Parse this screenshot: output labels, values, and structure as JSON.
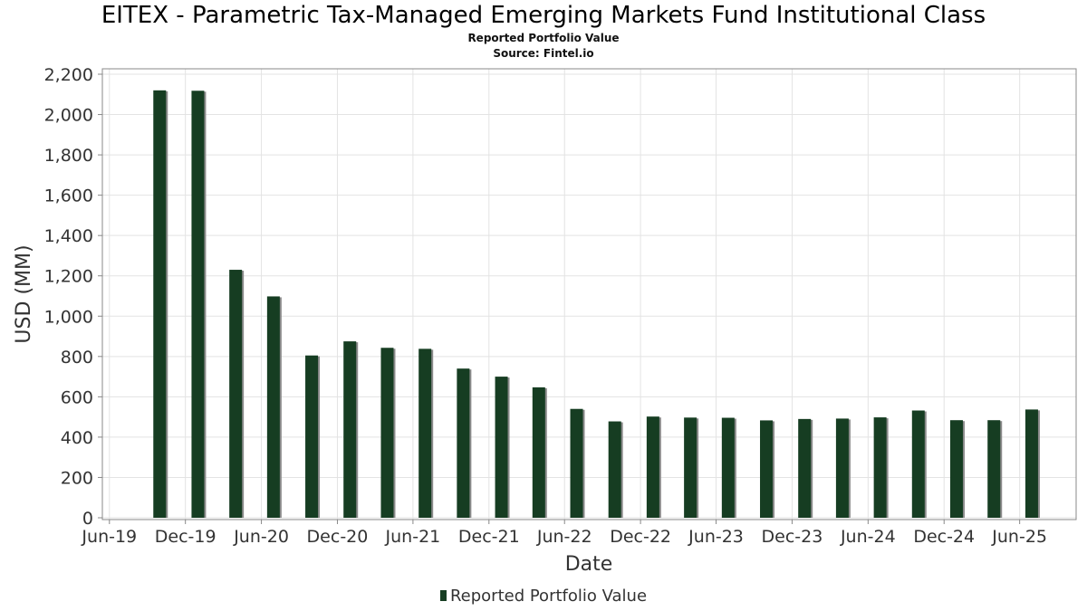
{
  "header": {
    "title": "EITEX - Parametric Tax-Managed Emerging Markets Fund Institutional Class",
    "subtitle": "Reported Portfolio Value",
    "source": "Source: Fintel.io"
  },
  "legend": {
    "label": "Reported Portfolio Value"
  },
  "colors": {
    "bar": "#163d22",
    "bar_shadow": "#8a8a8a",
    "grid": "#e3e3e3",
    "axis": "#888888"
  },
  "chart_data": {
    "type": "bar",
    "title": "EITEX - Parametric Tax-Managed Emerging Markets Fund Institutional Class",
    "subtitle": "Reported Portfolio Value",
    "xlabel": "Date",
    "ylabel": "USD (MM)",
    "ylim": [
      0,
      2200
    ],
    "yticks": [
      0,
      200,
      400,
      600,
      800,
      1000,
      1200,
      1400,
      1600,
      1800,
      2000,
      2200
    ],
    "ytick_labels": [
      "0",
      "200",
      "400",
      "600",
      "800",
      "1,000",
      "1,200",
      "1,400",
      "1,600",
      "1,800",
      "2,000",
      "2,200"
    ],
    "xlim": [
      "2019-05-15",
      "2025-10-15"
    ],
    "xticks": [
      "2019-06-01",
      "2019-12-01",
      "2020-06-01",
      "2020-12-01",
      "2021-06-01",
      "2021-12-01",
      "2022-06-01",
      "2022-12-01",
      "2023-06-01",
      "2023-12-01",
      "2024-06-01",
      "2024-12-01",
      "2025-06-01"
    ],
    "xtick_labels": [
      "Jun-19",
      "Dec-19",
      "Jun-20",
      "Dec-20",
      "Jun-21",
      "Dec-21",
      "Jun-22",
      "Dec-22",
      "Jun-23",
      "Dec-23",
      "Jun-24",
      "Dec-24",
      "Jun-25"
    ],
    "grid": true,
    "legend_position": "bottom-center",
    "series": [
      {
        "name": "Reported Portfolio Value",
        "x": [
          "2019-09-30",
          "2019-12-31",
          "2020-03-31",
          "2020-06-30",
          "2020-09-30",
          "2020-12-31",
          "2021-03-31",
          "2021-06-30",
          "2021-09-30",
          "2021-12-31",
          "2022-03-31",
          "2022-06-30",
          "2022-09-30",
          "2022-12-31",
          "2023-03-31",
          "2023-06-30",
          "2023-09-30",
          "2023-12-31",
          "2024-03-31",
          "2024-06-30",
          "2024-09-30",
          "2024-12-31",
          "2025-03-31",
          "2025-06-30"
        ],
        "values": [
          2120,
          2118,
          1230,
          1098,
          805,
          875,
          843,
          838,
          740,
          700,
          647,
          540,
          478,
          502,
          497,
          496,
          483,
          490,
          492,
          498,
          532,
          484,
          484,
          537
        ]
      }
    ]
  }
}
